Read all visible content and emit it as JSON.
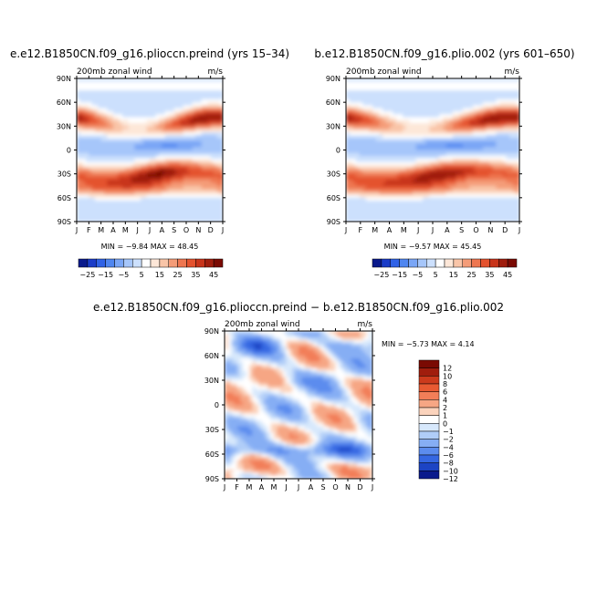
{
  "chart_data": [
    {
      "type": "heatmap",
      "title": "e.e12.B1850CN.f09_g16.plioccn.preind (yrs 15–34)",
      "left_label": "200mb zonal wind",
      "right_label": "m/s",
      "stats": "MIN = −9.84 MAX = 48.45",
      "x_ticks": [
        "J",
        "F",
        "M",
        "A",
        "M",
        "J",
        "J",
        "A",
        "S",
        "O",
        "N",
        "D",
        "J"
      ],
      "y_ticks": [
        "90N",
        "60N",
        "30N",
        "0",
        "30S",
        "60S",
        "90S"
      ],
      "colorbar_labels": [
        "−25",
        "−15",
        "−5",
        "5",
        "15",
        "25",
        "35",
        "45"
      ],
      "grid": false
    },
    {
      "type": "heatmap",
      "title": "b.e12.B1850CN.f09_g16.plio.002 (yrs 601–650)",
      "left_label": "200mb zonal wind",
      "right_label": "m/s",
      "stats": "MIN = −9.57 MAX = 45.45",
      "x_ticks": [
        "J",
        "F",
        "M",
        "A",
        "M",
        "J",
        "J",
        "A",
        "S",
        "O",
        "N",
        "D",
        "J"
      ],
      "y_ticks": [
        "90N",
        "60N",
        "30N",
        "0",
        "30S",
        "60S",
        "90S"
      ],
      "colorbar_labels": [
        "−25",
        "−15",
        "−5",
        "5",
        "15",
        "25",
        "35",
        "45"
      ],
      "grid": false
    },
    {
      "type": "heatmap",
      "title": "e.e12.B1850CN.f09_g16.plioccn.preind − b.e12.B1850CN.f09_g16.plio.002",
      "left_label": "200mb zonal wind",
      "right_label": "m/s",
      "stats": "MIN = −5.73 MAX =  4.14",
      "x_ticks": [
        "J",
        "F",
        "M",
        "A",
        "M",
        "J",
        "J",
        "A",
        "S",
        "O",
        "N",
        "D",
        "J"
      ],
      "y_ticks": [
        "90N",
        "60N",
        "30N",
        "0",
        "30S",
        "60S",
        "90S"
      ],
      "colorbar_labels": [
        "12",
        "10",
        "8",
        "6",
        "4",
        "2",
        "1",
        "0",
        "−1",
        "−2",
        "−4",
        "−6",
        "−8",
        "−10",
        "−12"
      ],
      "grid": false
    }
  ],
  "colors": {
    "full_scale": [
      "#0a1a8c",
      "#1a3cc8",
      "#2f62e6",
      "#4f86f0",
      "#7aa6f6",
      "#a6c6fa",
      "#cce0fd",
      "#ffffff",
      "#fde7d8",
      "#f9c5a8",
      "#f49c78",
      "#ee7650",
      "#e4522e",
      "#c8341a",
      "#a01d0d",
      "#7a0a03"
    ],
    "diff_scale": [
      "#7a0a03",
      "#a01d0d",
      "#cc3a1c",
      "#e85a32",
      "#f27e58",
      "#f6a684",
      "#fbd3bc",
      "#ffffff",
      "#d7e8fc",
      "#b0cdf8",
      "#86aef4",
      "#5c8cee",
      "#3567e2",
      "#1c44c4",
      "#0a1a8c"
    ]
  }
}
